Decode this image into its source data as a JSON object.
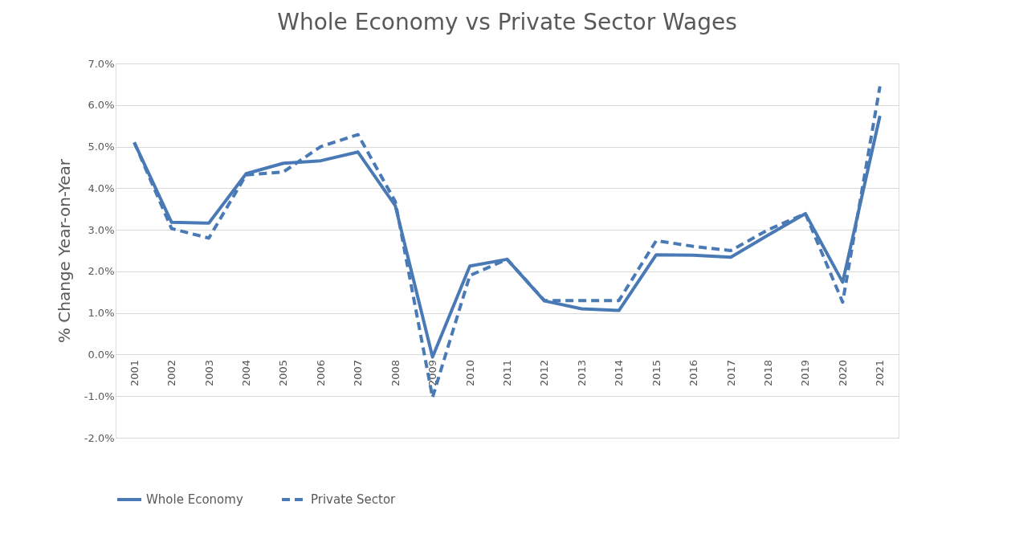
{
  "chart_data": {
    "type": "line",
    "title": "Whole Economy vs Private Sector Wages",
    "ylabel": "% Change Year-on-Year",
    "categories": [
      "2001",
      "2002",
      "2003",
      "2004",
      "2005",
      "2006",
      "2007",
      "2008",
      "2009",
      "2010",
      "2011",
      "2012",
      "2013",
      "2014",
      "2015",
      "2016",
      "2017",
      "2018",
      "2019",
      "2020",
      "2021"
    ],
    "series": [
      {
        "name": "Whole Economy",
        "color": "#4a7ab5",
        "line_style": "solid",
        "values": [
          5.1,
          3.18,
          3.16,
          4.35,
          4.6,
          4.66,
          4.87,
          3.58,
          -0.06,
          2.13,
          2.29,
          1.29,
          1.1,
          1.06,
          2.4,
          2.39,
          2.34,
          2.87,
          3.39,
          1.74,
          5.74
        ]
      },
      {
        "name": "Private Sector",
        "color": "#4a7ab5",
        "line_style": "dashed",
        "values": [
          5.1,
          3.03,
          2.8,
          4.32,
          4.39,
          5.0,
          5.29,
          3.68,
          -1.03,
          1.9,
          2.29,
          1.3,
          1.3,
          1.3,
          2.74,
          2.6,
          2.5,
          3.0,
          3.39,
          1.26,
          6.45
        ]
      }
    ],
    "ylim": [
      -2,
      7
    ],
    "yticks": [
      {
        "value": -2,
        "label": "-2.0%"
      },
      {
        "value": -1,
        "label": "-1.0%"
      },
      {
        "value": 0,
        "label": "0.0%"
      },
      {
        "value": 1,
        "label": "1.0%"
      },
      {
        "value": 2,
        "label": "2.0%"
      },
      {
        "value": 3,
        "label": "3.0%"
      },
      {
        "value": 4,
        "label": "4.0%"
      },
      {
        "value": 5,
        "label": "5.0%"
      },
      {
        "value": 6,
        "label": "6.0%"
      },
      {
        "value": 7,
        "label": "7.0%"
      }
    ],
    "grid": "y",
    "legend": "bottom",
    "marker": "none"
  }
}
